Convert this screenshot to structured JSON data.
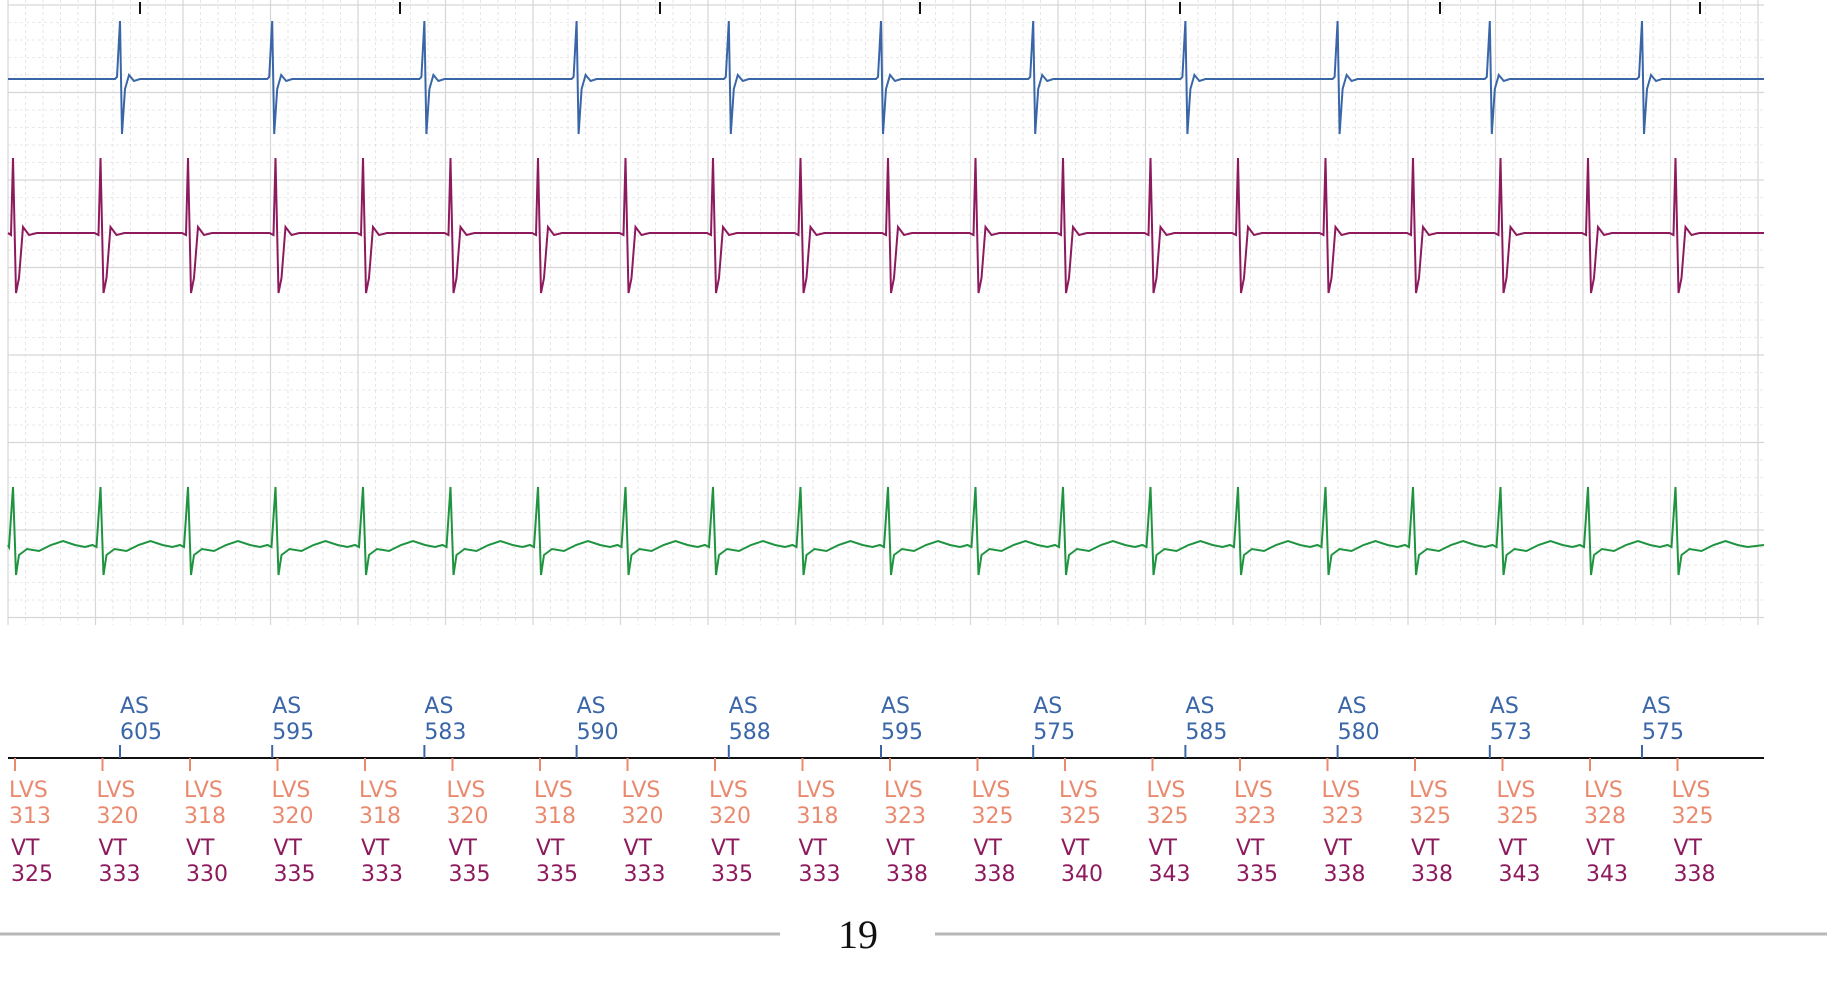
{
  "chart_data": {
    "type": "line",
    "title": "",
    "colors": {
      "atrial": "#3a66a8",
      "ventricular": "#8e1a5e",
      "shock": "#1f9440",
      "lvs_text": "#e98a6f",
      "vt_text": "#8e1a5e",
      "as_text": "#3a66a8",
      "grid": "#d6d6d6"
    },
    "as_markers": [
      {
        "label": "AS",
        "interval": "605"
      },
      {
        "label": "AS",
        "interval": "595"
      },
      {
        "label": "AS",
        "interval": "583"
      },
      {
        "label": "AS",
        "interval": "590"
      },
      {
        "label": "AS",
        "interval": "588"
      },
      {
        "label": "AS",
        "interval": "595"
      },
      {
        "label": "AS",
        "interval": "575"
      },
      {
        "label": "AS",
        "interval": "585"
      },
      {
        "label": "AS",
        "interval": "580"
      },
      {
        "label": "AS",
        "interval": "573"
      },
      {
        "label": "AS",
        "interval": "575"
      }
    ],
    "v_markers": [
      {
        "label": "LVS",
        "interval": "313",
        "zone": "VT",
        "zone_interval": "325"
      },
      {
        "label": "LVS",
        "interval": "320",
        "zone": "VT",
        "zone_interval": "333"
      },
      {
        "label": "LVS",
        "interval": "318",
        "zone": "VT",
        "zone_interval": "330"
      },
      {
        "label": "LVS",
        "interval": "320",
        "zone": "VT",
        "zone_interval": "335"
      },
      {
        "label": "LVS",
        "interval": "318",
        "zone": "VT",
        "zone_interval": "333"
      },
      {
        "label": "LVS",
        "interval": "320",
        "zone": "VT",
        "zone_interval": "335"
      },
      {
        "label": "LVS",
        "interval": "318",
        "zone": "VT",
        "zone_interval": "335"
      },
      {
        "label": "LVS",
        "interval": "320",
        "zone": "VT",
        "zone_interval": "333"
      },
      {
        "label": "LVS",
        "interval": "320",
        "zone": "VT",
        "zone_interval": "335"
      },
      {
        "label": "LVS",
        "interval": "318",
        "zone": "VT",
        "zone_interval": "333"
      },
      {
        "label": "LVS",
        "interval": "323",
        "zone": "VT",
        "zone_interval": "338"
      },
      {
        "label": "LVS",
        "interval": "325",
        "zone": "VT",
        "zone_interval": "338"
      },
      {
        "label": "LVS",
        "interval": "325",
        "zone": "VT",
        "zone_interval": "340"
      },
      {
        "label": "LVS",
        "interval": "325",
        "zone": "VT",
        "zone_interval": "343"
      },
      {
        "label": "LVS",
        "interval": "323",
        "zone": "VT",
        "zone_interval": "335"
      },
      {
        "label": "LVS",
        "interval": "323",
        "zone": "VT",
        "zone_interval": "338"
      },
      {
        "label": "LVS",
        "interval": "325",
        "zone": "VT",
        "zone_interval": "338"
      },
      {
        "label": "LVS",
        "interval": "325",
        "zone": "VT",
        "zone_interval": "343"
      },
      {
        "label": "LVS",
        "interval": "328",
        "zone": "VT",
        "zone_interval": "343"
      },
      {
        "label": "LVS",
        "interval": "325",
        "zone": "VT",
        "zone_interval": "338"
      }
    ]
  },
  "page": {
    "number": "19"
  }
}
